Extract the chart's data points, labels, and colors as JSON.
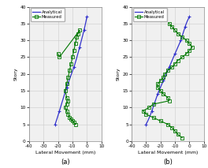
{
  "xlim": [
    -40,
    10
  ],
  "ylim": [
    0,
    40
  ],
  "xlabel": "Lateral Movement (mm)",
  "ylabel": "Story",
  "yticks": [
    0,
    5,
    10,
    15,
    20,
    25,
    30,
    35,
    40
  ],
  "xticks": [
    -40,
    -30,
    -20,
    -10,
    0,
    10
  ],
  "legend_analytical": "Analytical",
  "legend_measured": "Measured",
  "label_a": "(a)",
  "label_b": "(b)",
  "analytical_color": "#3333cc",
  "measured_color": "#007700",
  "analytical_a_x": [
    0,
    -2,
    -5,
    -9,
    -14,
    -19,
    -22
  ],
  "analytical_a_y": [
    37,
    33,
    28,
    22,
    16,
    9,
    5
  ],
  "measured_a_x": [
    -5,
    -8,
    -10,
    -11,
    -12,
    -13,
    -14,
    -13,
    -12,
    -14,
    -15,
    -14,
    -13,
    -14,
    -15,
    -14,
    -13,
    -12,
    -10,
    -8,
    -7,
    -6,
    -5,
    -20,
    -19
  ],
  "measured_a_y": [
    33,
    30,
    27,
    25,
    23,
    21,
    19,
    17,
    16,
    14,
    13,
    12,
    11,
    10,
    9,
    8,
    7,
    6.5,
    6,
    5.5,
    5,
    4.5,
    4,
    25,
    26
  ],
  "analytical_b_x": [
    0,
    -2,
    -5,
    -8,
    -12,
    -16,
    -20,
    -25,
    -30
  ],
  "analytical_b_y": [
    37,
    34,
    30,
    26,
    22,
    18,
    14,
    9,
    5
  ],
  "measured_b_x": [
    -14,
    -12,
    -10,
    -8,
    -5,
    -2,
    0,
    2,
    0,
    -2,
    -5,
    -8,
    -10,
    -12,
    -15,
    -17,
    -18,
    -20,
    -22,
    -22,
    -20,
    -18,
    -15,
    -14,
    -25,
    -28,
    -32,
    -30,
    -25,
    -20,
    -15,
    -12,
    -10,
    -8,
    -5
  ],
  "measured_b_y": [
    35,
    34,
    33,
    32,
    31,
    30,
    29,
    28,
    27,
    26,
    25,
    24,
    23,
    22,
    21,
    20,
    19,
    18,
    17,
    16,
    15,
    14,
    13,
    12,
    11,
    10,
    9,
    8,
    7,
    6,
    5,
    4,
    3,
    2,
    1
  ],
  "background": "#f0f0f0",
  "grid_color": "#cccccc"
}
